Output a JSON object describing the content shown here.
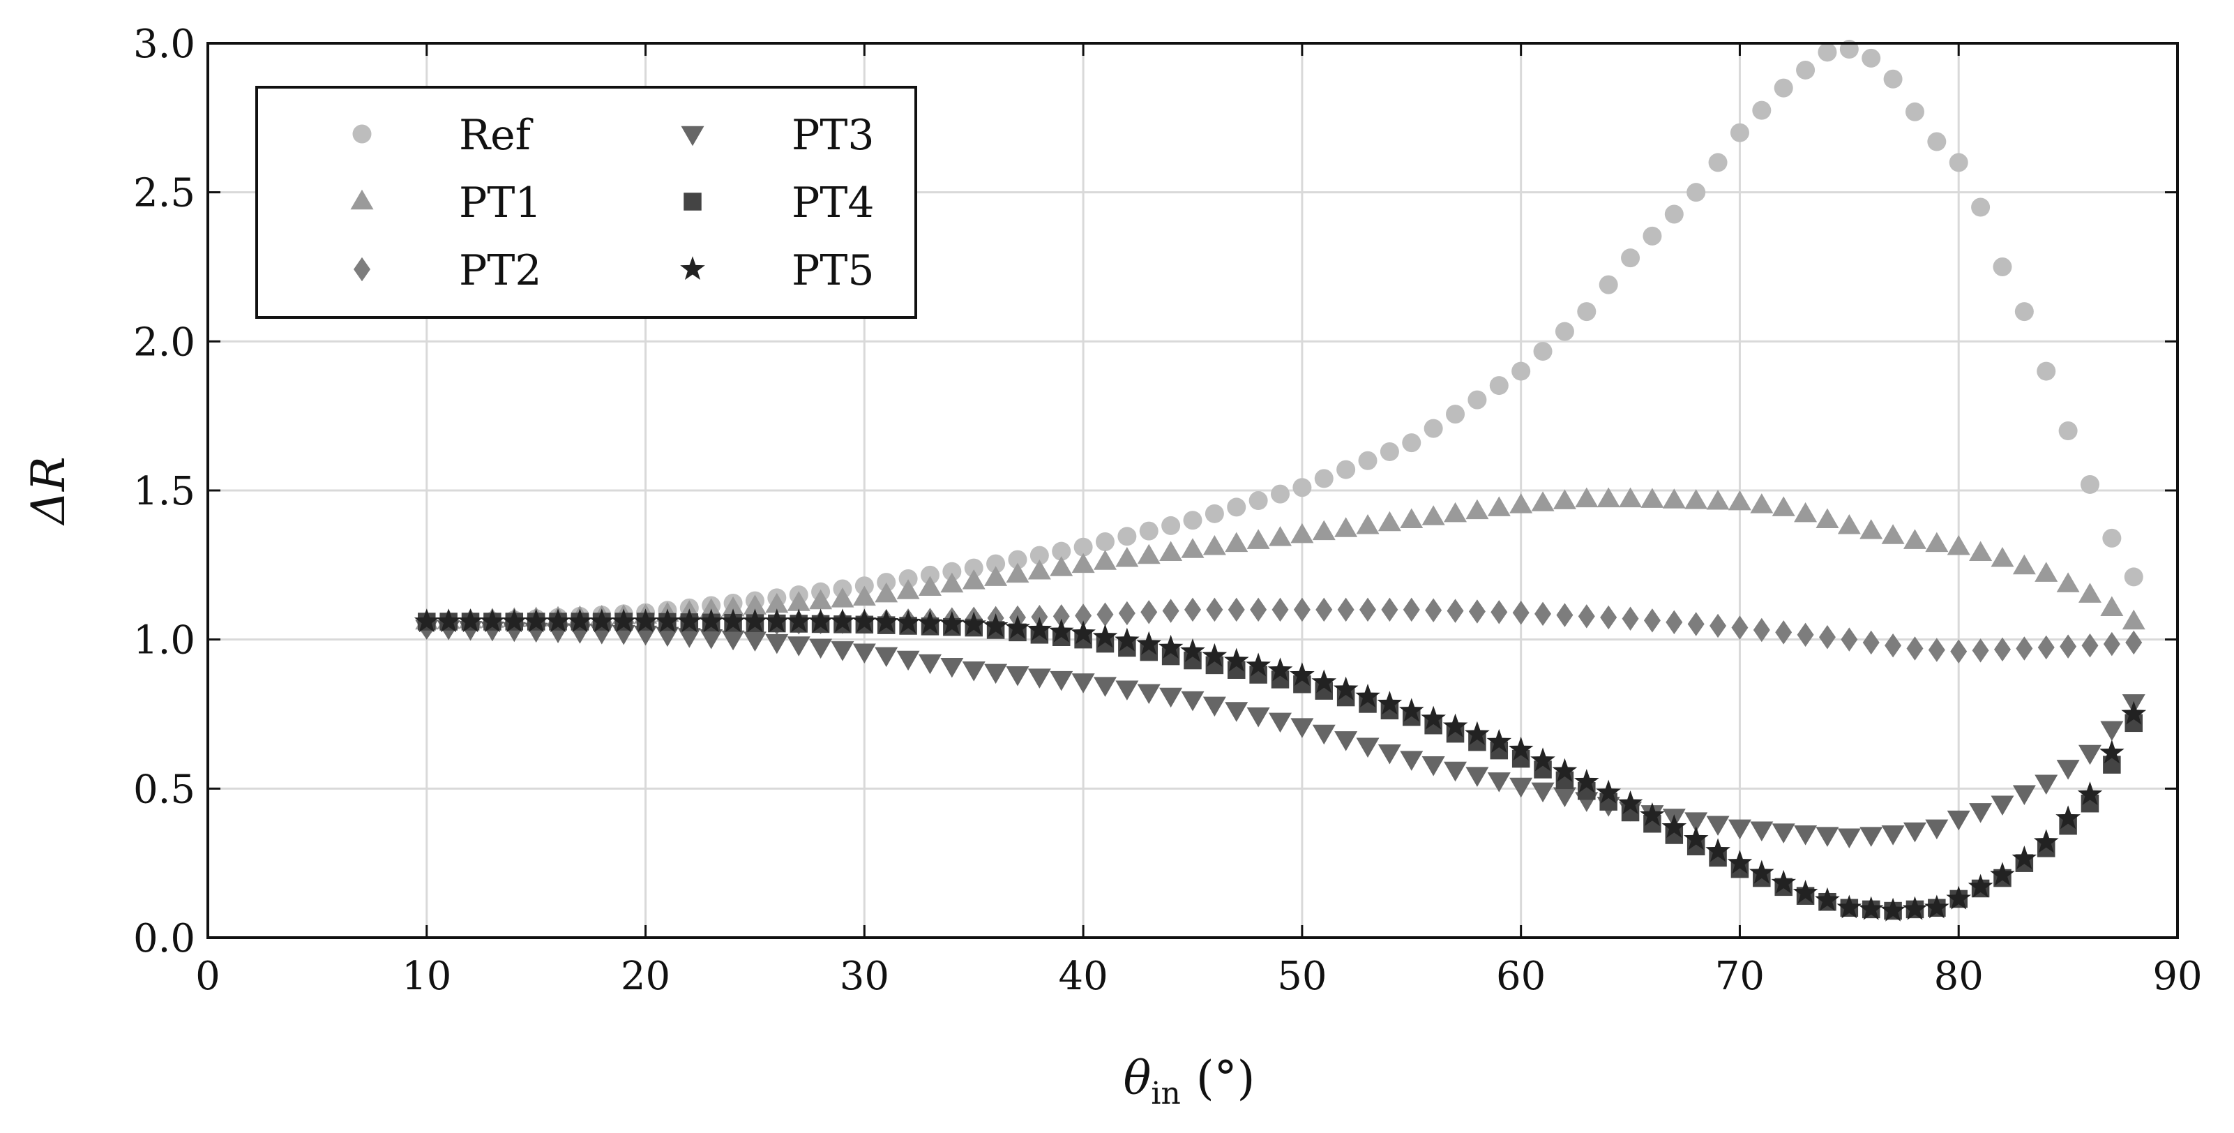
{
  "chart_data": {
    "type": "scatter",
    "title": "",
    "xlabel": "θin (°)",
    "xlabel_symbol": "θ",
    "xlabel_subscript": "in",
    "xlabel_unit": "(°)",
    "ylabel": "ΔR",
    "xlim": [
      0,
      90
    ],
    "ylim": [
      0.0,
      3.0
    ],
    "xticks": [
      0,
      10,
      20,
      30,
      40,
      50,
      60,
      70,
      80,
      90
    ],
    "xtick_labels": [
      "0",
      "10",
      "20",
      "30",
      "40",
      "50",
      "60",
      "70",
      "80",
      "90"
    ],
    "yticks": [
      0.0,
      0.5,
      1.0,
      1.5,
      2.0,
      2.5,
      3.0
    ],
    "ytick_labels": [
      "0.0",
      "0.5",
      "1.0",
      "1.5",
      "2.0",
      "2.5",
      "3.0"
    ],
    "grid": true,
    "legend_position": "top-left",
    "legend_columns": 2,
    "series": [
      {
        "name": "Ref",
        "marker": "circle",
        "color": "#bdbdbd",
        "knots": [
          [
            10,
            1.05
          ],
          [
            15,
            1.07
          ],
          [
            20,
            1.09
          ],
          [
            25,
            1.13
          ],
          [
            30,
            1.18
          ],
          [
            35,
            1.24
          ],
          [
            40,
            1.31
          ],
          [
            45,
            1.4
          ],
          [
            50,
            1.51
          ],
          [
            55,
            1.66
          ],
          [
            60,
            1.9
          ],
          [
            63,
            2.1
          ],
          [
            65,
            2.28
          ],
          [
            68,
            2.5
          ],
          [
            70,
            2.7
          ],
          [
            72,
            2.85
          ],
          [
            74,
            2.97
          ],
          [
            75,
            2.98
          ],
          [
            76,
            2.95
          ],
          [
            77,
            2.88
          ],
          [
            78,
            2.77
          ],
          [
            79,
            2.67
          ],
          [
            80,
            2.6
          ],
          [
            81,
            2.45
          ],
          [
            82,
            2.25
          ],
          [
            83,
            2.1
          ],
          [
            84,
            1.9
          ],
          [
            85,
            1.7
          ],
          [
            86,
            1.52
          ],
          [
            87,
            1.34
          ],
          [
            88,
            1.21
          ]
        ]
      },
      {
        "name": "PT1",
        "marker": "triangle-up",
        "color": "#9a9a9a",
        "knots": [
          [
            10,
            1.06
          ],
          [
            20,
            1.08
          ],
          [
            30,
            1.14
          ],
          [
            40,
            1.25
          ],
          [
            50,
            1.35
          ],
          [
            55,
            1.4
          ],
          [
            60,
            1.45
          ],
          [
            63,
            1.47
          ],
          [
            65,
            1.47
          ],
          [
            70,
            1.46
          ],
          [
            72,
            1.44
          ],
          [
            75,
            1.38
          ],
          [
            78,
            1.33
          ],
          [
            80,
            1.31
          ],
          [
            82,
            1.27
          ],
          [
            84,
            1.22
          ],
          [
            86,
            1.15
          ],
          [
            88,
            1.06
          ]
        ]
      },
      {
        "name": "PT2",
        "marker": "diamond",
        "color": "#7d7d7d",
        "knots": [
          [
            10,
            1.04
          ],
          [
            20,
            1.05
          ],
          [
            30,
            1.06
          ],
          [
            40,
            1.08
          ],
          [
            45,
            1.1
          ],
          [
            50,
            1.1
          ],
          [
            55,
            1.1
          ],
          [
            60,
            1.09
          ],
          [
            65,
            1.07
          ],
          [
            70,
            1.04
          ],
          [
            75,
            1.0
          ],
          [
            78,
            0.97
          ],
          [
            80,
            0.96
          ],
          [
            83,
            0.97
          ],
          [
            86,
            0.98
          ],
          [
            88,
            0.99
          ]
        ]
      },
      {
        "name": "PT3",
        "marker": "triangle-down",
        "color": "#666666",
        "knots": [
          [
            10,
            1.04
          ],
          [
            20,
            1.02
          ],
          [
            25,
            1.0
          ],
          [
            30,
            0.96
          ],
          [
            35,
            0.9
          ],
          [
            40,
            0.86
          ],
          [
            45,
            0.8
          ],
          [
            50,
            0.71
          ],
          [
            55,
            0.6
          ],
          [
            60,
            0.51
          ],
          [
            65,
            0.43
          ],
          [
            70,
            0.37
          ],
          [
            73,
            0.35
          ],
          [
            75,
            0.34
          ],
          [
            77,
            0.35
          ],
          [
            79,
            0.37
          ],
          [
            80,
            0.4
          ],
          [
            82,
            0.45
          ],
          [
            84,
            0.52
          ],
          [
            86,
            0.62
          ],
          [
            87,
            0.7
          ],
          [
            88,
            0.79
          ]
        ]
      },
      {
        "name": "PT4",
        "marker": "square",
        "color": "#444444",
        "knots": [
          [
            10,
            1.06
          ],
          [
            20,
            1.06
          ],
          [
            30,
            1.05
          ],
          [
            35,
            1.04
          ],
          [
            40,
            1.0
          ],
          [
            45,
            0.93
          ],
          [
            50,
            0.85
          ],
          [
            55,
            0.74
          ],
          [
            60,
            0.6
          ],
          [
            65,
            0.42
          ],
          [
            70,
            0.23
          ],
          [
            73,
            0.14
          ],
          [
            75,
            0.1
          ],
          [
            77,
            0.09
          ],
          [
            79,
            0.1
          ],
          [
            80,
            0.13
          ],
          [
            82,
            0.2
          ],
          [
            84,
            0.3
          ],
          [
            86,
            0.45
          ],
          [
            87,
            0.58
          ],
          [
            88,
            0.72
          ]
        ]
      },
      {
        "name": "PT5",
        "marker": "star",
        "color": "#222222",
        "knots": [
          [
            10,
            1.06
          ],
          [
            20,
            1.06
          ],
          [
            30,
            1.06
          ],
          [
            35,
            1.05
          ],
          [
            40,
            1.02
          ],
          [
            45,
            0.96
          ],
          [
            50,
            0.88
          ],
          [
            55,
            0.76
          ],
          [
            60,
            0.63
          ],
          [
            65,
            0.45
          ],
          [
            70,
            0.25
          ],
          [
            73,
            0.15
          ],
          [
            75,
            0.1
          ],
          [
            77,
            0.09
          ],
          [
            79,
            0.1
          ],
          [
            80,
            0.13
          ],
          [
            82,
            0.21
          ],
          [
            84,
            0.32
          ],
          [
            86,
            0.48
          ],
          [
            87,
            0.62
          ],
          [
            88,
            0.75
          ]
        ]
      }
    ]
  }
}
